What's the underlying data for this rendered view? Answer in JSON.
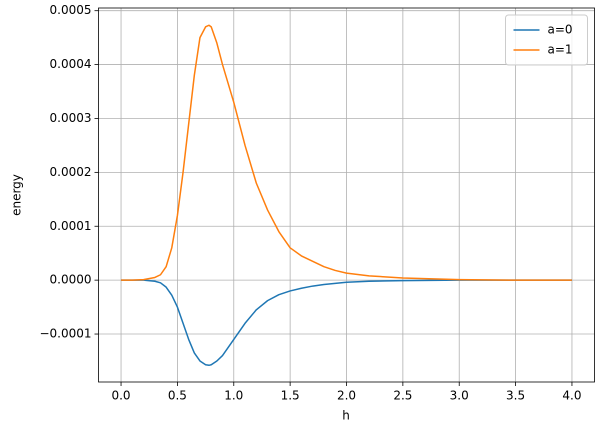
{
  "chart_data": {
    "type": "line",
    "xlabel": "h",
    "ylabel": "energy",
    "x": [
      0,
      0.1,
      0.2,
      0.3,
      0.35,
      0.4,
      0.45,
      0.5,
      0.55,
      0.6,
      0.65,
      0.7,
      0.75,
      0.78,
      0.8,
      0.85,
      0.9,
      1.0,
      1.1,
      1.2,
      1.3,
      1.4,
      1.5,
      1.6,
      1.7,
      1.8,
      1.9,
      2.0,
      2.2,
      2.5,
      3.0,
      3.5,
      4.0
    ],
    "series": [
      {
        "name": "a=0",
        "color": "#1f77b4",
        "values": [
          0,
          0,
          0,
          -2e-06,
          -5e-06,
          -1.3e-05,
          -2.8e-05,
          -5e-05,
          -8e-05,
          -0.00011,
          -0.000135,
          -0.00015,
          -0.000157,
          -0.000158,
          -0.000157,
          -0.00015,
          -0.00014,
          -0.00011,
          -8e-05,
          -5.5e-05,
          -3.8e-05,
          -2.7e-05,
          -2e-05,
          -1.5e-05,
          -1.1e-05,
          -8e-06,
          -6e-06,
          -4e-06,
          -2e-06,
          -1e-06,
          0,
          0,
          0
        ]
      },
      {
        "name": "a=1",
        "color": "#ff7f0e",
        "values": [
          0,
          0,
          1e-06,
          5e-06,
          1e-05,
          2.5e-05,
          6e-05,
          0.00012,
          0.0002,
          0.00029,
          0.00038,
          0.00045,
          0.00047,
          0.000473,
          0.00047,
          0.00044,
          0.0004,
          0.00033,
          0.00025,
          0.00018,
          0.00013,
          9e-05,
          6e-05,
          4.5e-05,
          3.5e-05,
          2.5e-05,
          1.8e-05,
          1.3e-05,
          8e-06,
          4e-06,
          1e-06,
          0,
          0
        ]
      }
    ],
    "xlim": [
      -0.2,
      4.2
    ],
    "ylim": [
      -0.000189,
      0.000505
    ],
    "xticks": [
      {
        "value": 0,
        "label": "0.0"
      },
      {
        "value": 0.5,
        "label": "0.5"
      },
      {
        "value": 1,
        "label": "1.0"
      },
      {
        "value": 1.5,
        "label": "1.5"
      },
      {
        "value": 2,
        "label": "2.0"
      },
      {
        "value": 2.5,
        "label": "2.5"
      },
      {
        "value": 3,
        "label": "3.0"
      },
      {
        "value": 3.5,
        "label": "3.5"
      },
      {
        "value": 4,
        "label": "4.0"
      }
    ],
    "yticks": [
      {
        "value": -0.0001,
        "label": "−0.0001"
      },
      {
        "value": 0,
        "label": "0.0000"
      },
      {
        "value": 0.0001,
        "label": "0.0001"
      },
      {
        "value": 0.0002,
        "label": "0.0002"
      },
      {
        "value": 0.0003,
        "label": "0.0003"
      },
      {
        "value": 0.0004,
        "label": "0.0004"
      },
      {
        "value": 0.0005,
        "label": "0.0005"
      }
    ],
    "grid": true,
    "legend": "upper right"
  }
}
